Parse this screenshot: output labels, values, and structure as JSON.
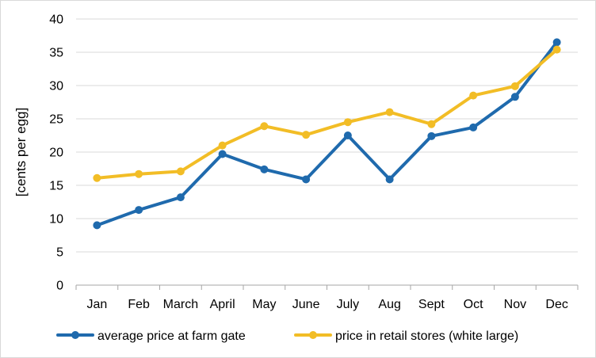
{
  "chart_data": {
    "type": "line",
    "categories": [
      "Jan",
      "Feb",
      "March",
      "April",
      "May",
      "June",
      "July",
      "Aug",
      "Sept",
      "Oct",
      "Nov",
      "Dec"
    ],
    "ylabel": "[cents per egg]",
    "xlabel": "",
    "title": "",
    "ylim": [
      0,
      40
    ],
    "yticks": [
      0,
      5,
      10,
      15,
      20,
      25,
      30,
      35,
      40
    ],
    "grid": true,
    "legend_position": "bottom",
    "series": [
      {
        "name": "average price at farm gate",
        "color": "#1f6aad",
        "values": [
          9.0,
          11.3,
          13.2,
          19.7,
          17.4,
          15.9,
          22.5,
          15.9,
          22.4,
          23.7,
          28.3,
          36.5
        ]
      },
      {
        "name": "price in retail stores (white large)",
        "color": "#f2bd26",
        "values": [
          16.1,
          16.7,
          17.1,
          21.0,
          23.9,
          22.6,
          24.5,
          26.0,
          24.2,
          28.5,
          29.9,
          35.4
        ]
      }
    ]
  }
}
